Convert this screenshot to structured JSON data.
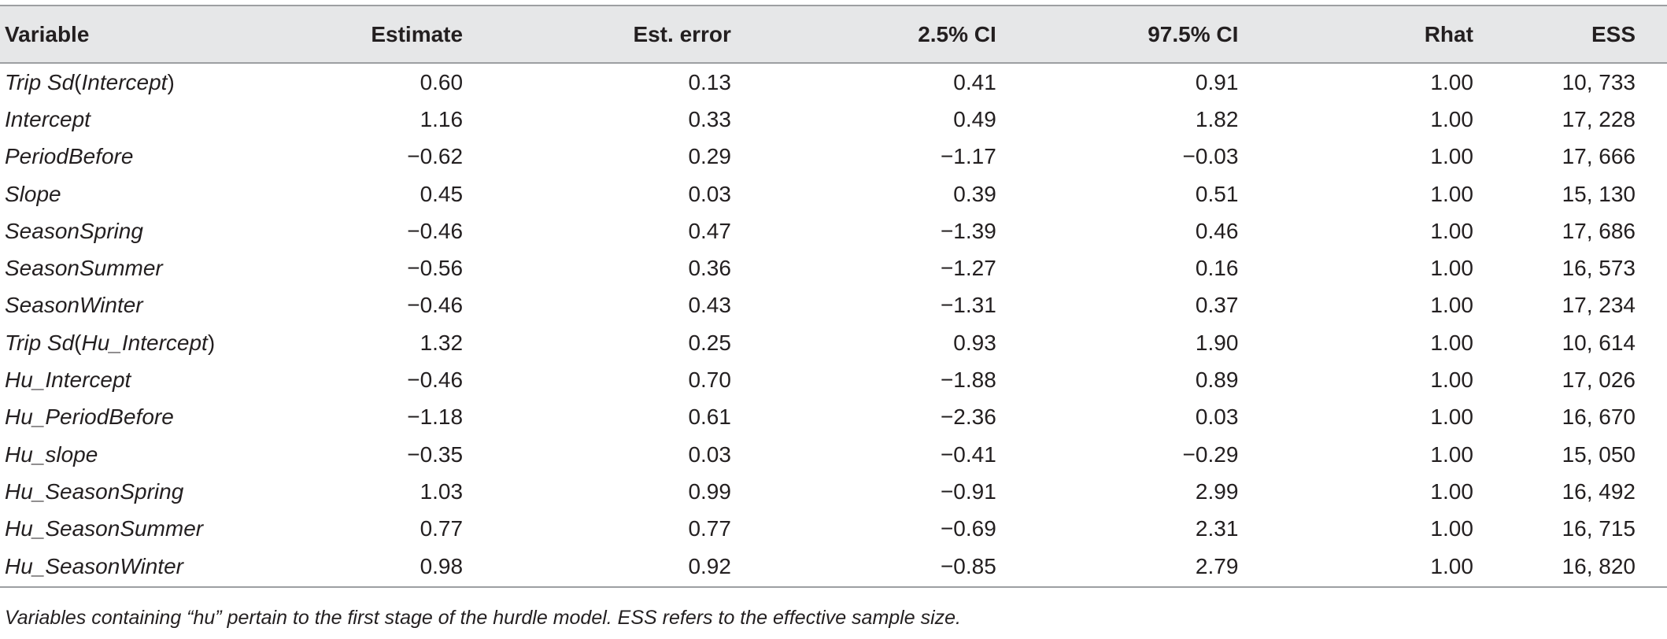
{
  "table": {
    "headers": [
      "Variable",
      "Estimate",
      "Est. error",
      "2.5% CI",
      "97.5% CI",
      "Rhat",
      "ESS"
    ],
    "rows": [
      {
        "variable_parts": [
          "Trip Sd",
          "(",
          "Intercept",
          ")"
        ],
        "estimate": "0.60",
        "est_error": "0.13",
        "ci_low": "0.41",
        "ci_high": "0.91",
        "rhat": "1.00",
        "ess": "10, 733"
      },
      {
        "variable": "Intercept",
        "estimate": "1.16",
        "est_error": "0.33",
        "ci_low": "0.49",
        "ci_high": "1.82",
        "rhat": "1.00",
        "ess": "17, 228"
      },
      {
        "variable": "PeriodBefore",
        "estimate": "−0.62",
        "est_error": "0.29",
        "ci_low": "−1.17",
        "ci_high": "−0.03",
        "rhat": "1.00",
        "ess": "17, 666"
      },
      {
        "variable": "Slope",
        "estimate": "0.45",
        "est_error": "0.03",
        "ci_low": "0.39",
        "ci_high": "0.51",
        "rhat": "1.00",
        "ess": "15, 130"
      },
      {
        "variable": "SeasonSpring",
        "estimate": "−0.46",
        "est_error": "0.47",
        "ci_low": "−1.39",
        "ci_high": "0.46",
        "rhat": "1.00",
        "ess": "17, 686"
      },
      {
        "variable": "SeasonSummer",
        "estimate": "−0.56",
        "est_error": "0.36",
        "ci_low": "−1.27",
        "ci_high": "0.16",
        "rhat": "1.00",
        "ess": "16, 573"
      },
      {
        "variable": "SeasonWinter",
        "estimate": "−0.46",
        "est_error": "0.43",
        "ci_low": "−1.31",
        "ci_high": "0.37",
        "rhat": "1.00",
        "ess": "17, 234"
      },
      {
        "variable_parts": [
          "Trip Sd",
          "(",
          "Hu_Intercept",
          ")"
        ],
        "estimate": "1.32",
        "est_error": "0.25",
        "ci_low": "0.93",
        "ci_high": "1.90",
        "rhat": "1.00",
        "ess": "10, 614"
      },
      {
        "variable": "Hu_Intercept",
        "estimate": "−0.46",
        "est_error": "0.70",
        "ci_low": "−1.88",
        "ci_high": "0.89",
        "rhat": "1.00",
        "ess": "17, 026"
      },
      {
        "variable": "Hu_PeriodBefore",
        "estimate": "−1.18",
        "est_error": "0.61",
        "ci_low": "−2.36",
        "ci_high": "0.03",
        "rhat": "1.00",
        "ess": "16, 670"
      },
      {
        "variable": "Hu_slope",
        "estimate": "−0.35",
        "est_error": "0.03",
        "ci_low": "−0.41",
        "ci_high": "−0.29",
        "rhat": "1.00",
        "ess": "15, 050"
      },
      {
        "variable": "Hu_SeasonSpring",
        "estimate": "1.03",
        "est_error": "0.99",
        "ci_low": "−0.91",
        "ci_high": "2.99",
        "rhat": "1.00",
        "ess": "16, 492"
      },
      {
        "variable": "Hu_SeasonSummer",
        "estimate": "0.77",
        "est_error": "0.77",
        "ci_low": "−0.69",
        "ci_high": "2.31",
        "rhat": "1.00",
        "ess": "16, 715"
      },
      {
        "variable": "Hu_SeasonWinter",
        "estimate": "0.98",
        "est_error": "0.92",
        "ci_low": "−0.85",
        "ci_high": "2.79",
        "rhat": "1.00",
        "ess": "16, 820"
      }
    ]
  },
  "footnote": "Variables containing “hu” pertain to the first stage of the hurdle model. ESS refers to the effective sample size.",
  "colors": {
    "header_bg": "#e6e7e8",
    "rule": "#9d9fa2",
    "text": "#231f20"
  }
}
